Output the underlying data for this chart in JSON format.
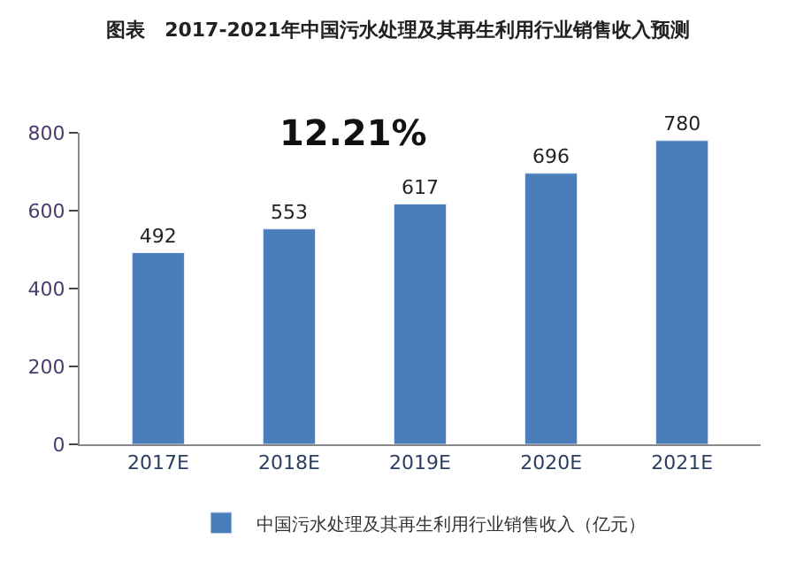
{
  "chart_data": {
    "type": "bar",
    "title": "图表　2017-2021年中国污水处理及其再生利用行业销售收入预测",
    "categories": [
      "2017E",
      "2018E",
      "2019E",
      "2020E",
      "2021E"
    ],
    "series": [
      {
        "name": "中国污水处理及其再生利用行业销售收入（亿元）",
        "color": "#4a7ebb",
        "values": [
          492,
          553,
          617,
          696,
          780
        ]
      }
    ],
    "data_labels": true,
    "ylim": [
      0,
      800
    ],
    "yticks": [
      0,
      200,
      400,
      600,
      800
    ],
    "annotations": [
      "12.21%"
    ],
    "legend": "bottom"
  }
}
